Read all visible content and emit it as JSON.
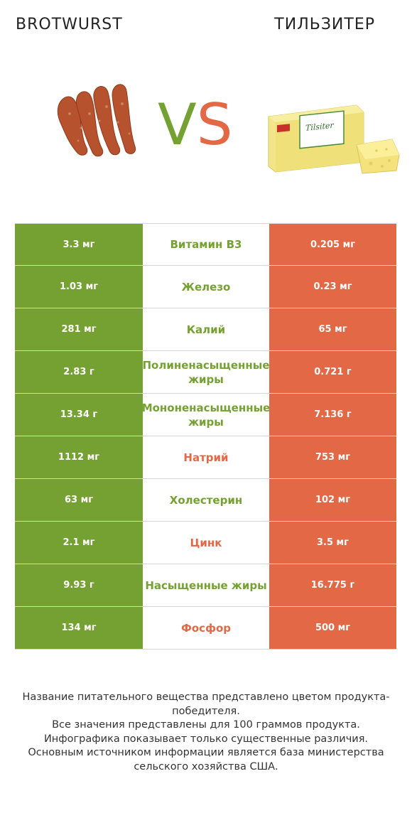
{
  "header": {
    "left_title": "BROTWURST",
    "right_title": "ТИЛЬЗИТЕР",
    "vs_v": "V",
    "vs_s": "S"
  },
  "colors": {
    "left": "#75a133",
    "right": "#e36846"
  },
  "rows": [
    {
      "left": "3.3 мг",
      "nutrient": "Витамин B3",
      "right": "0.205 мг",
      "winner": "left"
    },
    {
      "left": "1.03 мг",
      "nutrient": "Железо",
      "right": "0.23 мг",
      "winner": "left"
    },
    {
      "left": "281 мг",
      "nutrient": "Калий",
      "right": "65 мг",
      "winner": "left"
    },
    {
      "left": "2.83 г",
      "nutrient": "Полиненасыщенные жиры",
      "right": "0.721 г",
      "winner": "left"
    },
    {
      "left": "13.34 г",
      "nutrient": "Мононенасыщенные жиры",
      "right": "7.136 г",
      "winner": "left"
    },
    {
      "left": "1112 мг",
      "nutrient": "Натрий",
      "right": "753 мг",
      "winner": "right"
    },
    {
      "left": "63 мг",
      "nutrient": "Холестерин",
      "right": "102 мг",
      "winner": "left"
    },
    {
      "left": "2.1 мг",
      "nutrient": "Цинк",
      "right": "3.5 мг",
      "winner": "right"
    },
    {
      "left": "9.93 г",
      "nutrient": "Насыщенные жиры",
      "right": "16.775 г",
      "winner": "left"
    },
    {
      "left": "134 мг",
      "nutrient": "Фосфор",
      "right": "500 мг",
      "winner": "right"
    }
  ],
  "footer": {
    "line1": "Название питательного вещества представлено цветом продукта-победителя.",
    "line2": "Все значения представлены для 100 граммов продукта.",
    "line3": "Инфографика показывает только существенные различия.",
    "line4": "Основным источником информации является база министерства сельского хозяйства США."
  },
  "images": {
    "left_icon": "brotwurst-sausage-image",
    "right_icon": "tilsiter-cheese-image",
    "cheese_label": "Tilsiter"
  }
}
